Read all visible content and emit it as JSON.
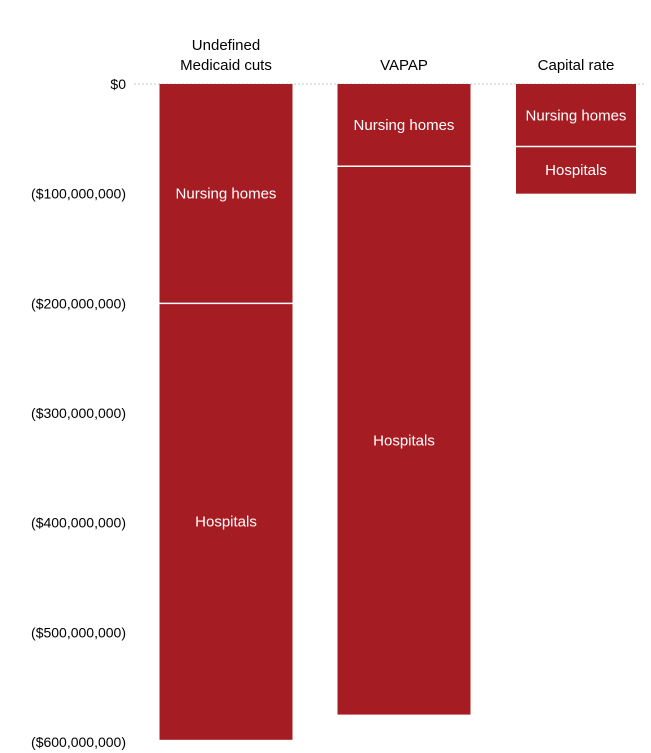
{
  "chart_data": {
    "type": "bar",
    "stacked": true,
    "orientation": "vertical",
    "categories": [
      [
        "Undefined",
        "Medicaid cuts"
      ],
      [
        "VAPAP"
      ],
      [
        "Capital rate"
      ]
    ],
    "series": [
      {
        "name": "Nursing homes",
        "values": [
          -200000000,
          -75000000,
          -57000000
        ]
      },
      {
        "name": "Hospitals",
        "values": [
          -398000000,
          -500000000,
          -43000000
        ]
      }
    ],
    "ylim": [
      -600000000,
      0
    ],
    "yticks": [
      0,
      -100000000,
      -200000000,
      -300000000,
      -400000000,
      -500000000,
      -600000000
    ],
    "ytick_labels": [
      "$0",
      "($100,000,000)",
      "($200,000,000)",
      "($300,000,000)",
      "($400,000,000)",
      "($500,000,000)",
      "($600,000,000)"
    ],
    "grid": "zero-line only",
    "bar_color": "#a61c23",
    "segment_label_color": "#ffffff",
    "title": "",
    "xlabel": "",
    "ylabel": ""
  }
}
